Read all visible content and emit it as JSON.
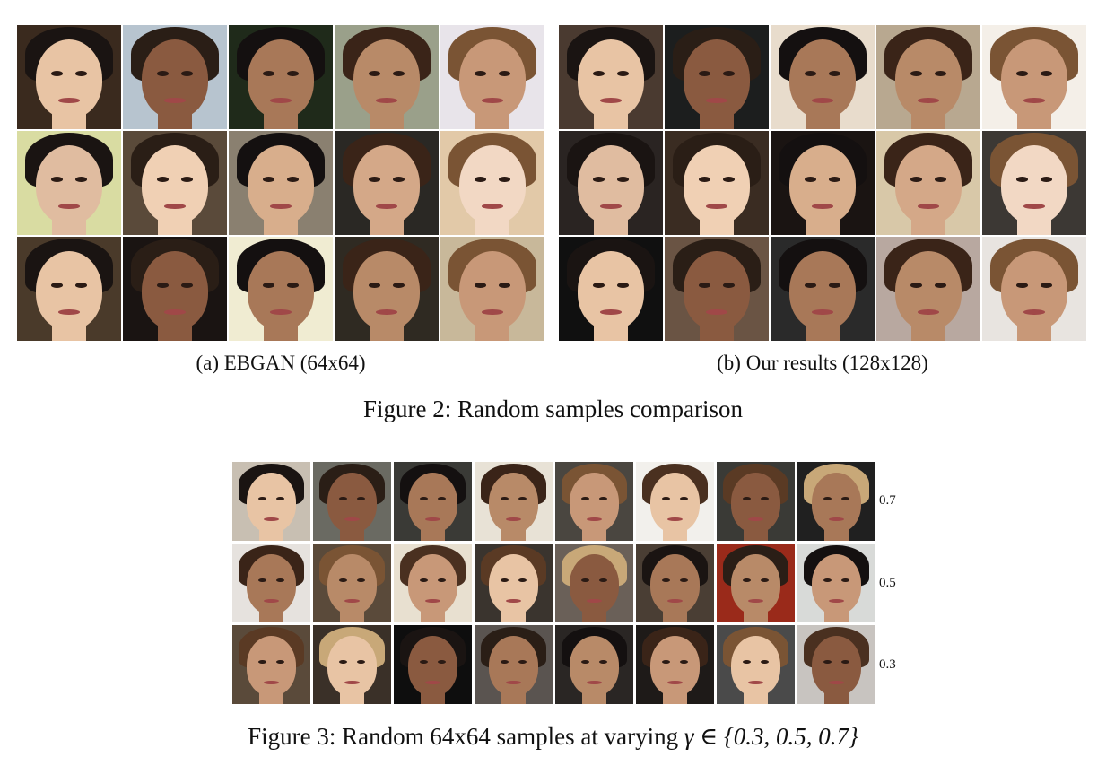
{
  "figure2": {
    "caption": "Figure 2: Random samples comparison",
    "subfigures": [
      {
        "caption": "(a) EBGAN (64x64)",
        "rows": 3,
        "cols": 5
      },
      {
        "caption": "(b) Our results (128x128)",
        "rows": 3,
        "cols": 5
      }
    ]
  },
  "figure3": {
    "caption_prefix": "Figure 3: Random 64x64 samples at varying ",
    "caption_math": "γ ∈ {0.3, 0.5, 0.7}",
    "row_labels": [
      "0.7",
      "0.5",
      "0.3"
    ],
    "rows": 3,
    "cols": 8
  },
  "palettes": {
    "ebgan_bg": [
      "#3a2a1e",
      "#b7c4cf",
      "#1f2a1a",
      "#9aa08a",
      "#e8e4ea",
      "#d9dca2",
      "#5a4a3a",
      "#8a8070",
      "#2a2824",
      "#e2c9a8",
      "#4a3a2a",
      "#1a1412",
      "#f0ecd2",
      "#2f2a22",
      "#c8b89a"
    ],
    "ours_bg": [
      "#4a3a30",
      "#1c1e1e",
      "#e8dccc",
      "#b8a890",
      "#f4efe8",
      "#2a2422",
      "#3a2c22",
      "#1a1412",
      "#d8c8a8",
      "#3c3834",
      "#101010",
      "#6a5444",
      "#2a2a2a",
      "#b8a8a0",
      "#e8e4e0"
    ],
    "gamma_bg": [
      "#c8bfb2",
      "#6a6a62",
      "#3a3a36",
      "#e8e2d6",
      "#4a4640",
      "#f2f0ec",
      "#3a3a36",
      "#202020",
      "#e6e2de",
      "#5a4a3a",
      "#e8e0d0",
      "#3a342e",
      "#6a6058",
      "#4a3e34",
      "#9a2a1a",
      "#d8dad8",
      "#5a4a3a",
      "#3a3028",
      "#0e0e0e",
      "#5a5450",
      "#2a2624",
      "#1e1a18",
      "#4a4a4a",
      "#c8c4c0"
    ],
    "skin": [
      "#e8c4a4",
      "#d8ae8c",
      "#c89878",
      "#f0d0b4",
      "#b88a68",
      "#e0bca0",
      "#a87858",
      "#f2d8c4",
      "#8a5a40",
      "#d4a888"
    ],
    "hair": [
      "#1a1412",
      "#3a2418",
      "#5a3a24",
      "#2a1e16",
      "#7a5434",
      "#c8a878",
      "#141010",
      "#4a3020"
    ]
  }
}
